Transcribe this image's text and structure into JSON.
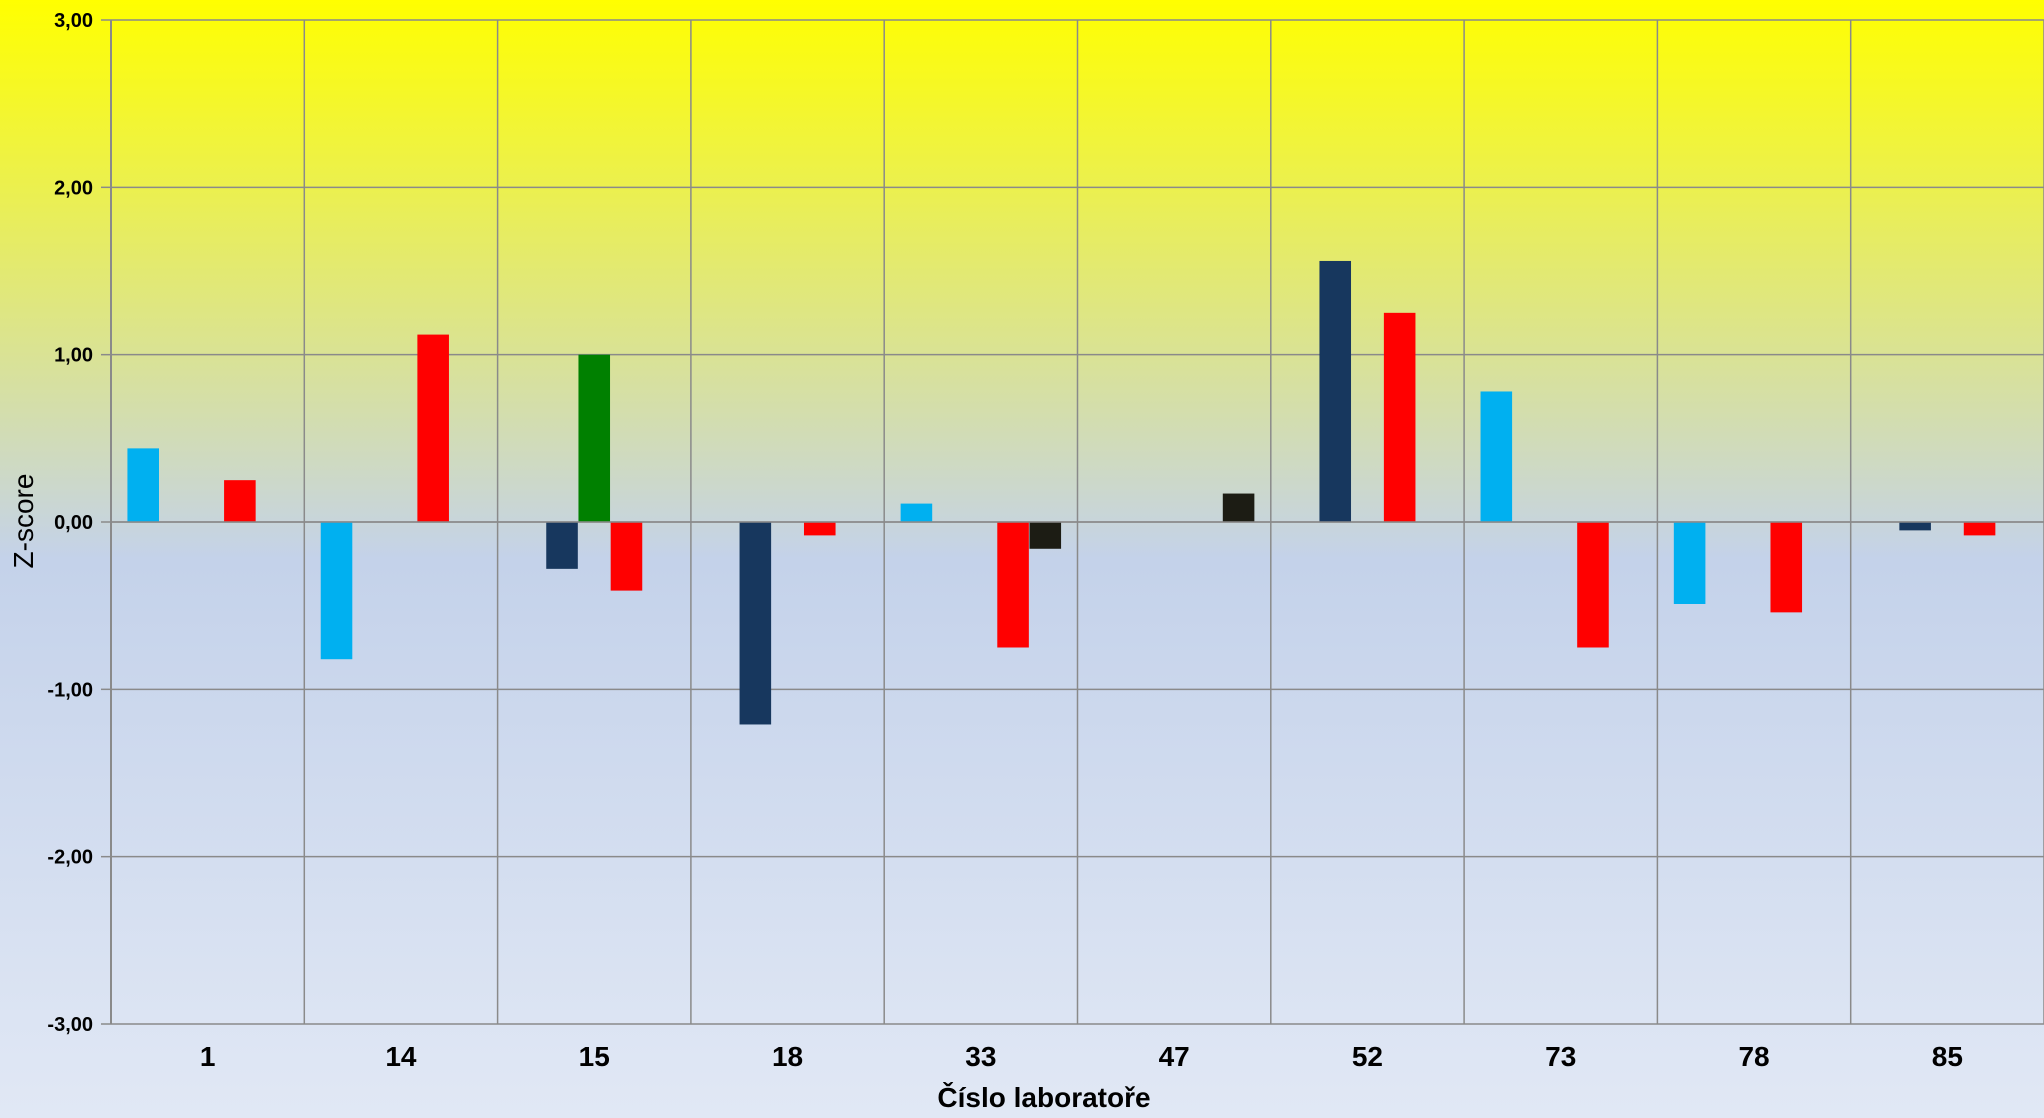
{
  "chart_data": {
    "type": "bar",
    "title": "",
    "xlabel": "Číslo laboratoře",
    "ylabel": "Z-score",
    "ylim": [
      -3,
      3
    ],
    "ytick_values": [
      3,
      2,
      1,
      0,
      -1,
      -2,
      -3
    ],
    "ytick_labels": [
      "3,00",
      "2,00",
      "1,00",
      "0,00",
      "-1,00",
      "-2,00",
      "-3,00"
    ],
    "grid": true,
    "legend": "none",
    "background_gradient": [
      "#ffff00",
      "#c4d2ea",
      "#e1e8f5"
    ],
    "categories": [
      "1",
      "14",
      "15",
      "18",
      "33",
      "47",
      "52",
      "73",
      "78",
      "85"
    ],
    "series": [
      {
        "color": "#00b0f0",
        "values": [
          0.44,
          -0.82,
          null,
          null,
          0.11,
          null,
          null,
          0.78,
          -0.49,
          null
        ]
      },
      {
        "color": "#17375e",
        "values": [
          null,
          null,
          -0.28,
          -1.21,
          null,
          null,
          1.56,
          null,
          null,
          -0.05
        ]
      },
      {
        "color": "#008000",
        "values": [
          null,
          null,
          1.0,
          null,
          null,
          null,
          null,
          null,
          null,
          null
        ]
      },
      {
        "color": "#ff0000",
        "values": [
          0.25,
          1.12,
          -0.41,
          -0.08,
          -0.75,
          null,
          1.25,
          -0.75,
          -0.54,
          -0.08
        ]
      },
      {
        "color": "#1c1c14",
        "values": [
          null,
          null,
          null,
          null,
          -0.16,
          0.17,
          null,
          null,
          null,
          null
        ]
      }
    ]
  }
}
